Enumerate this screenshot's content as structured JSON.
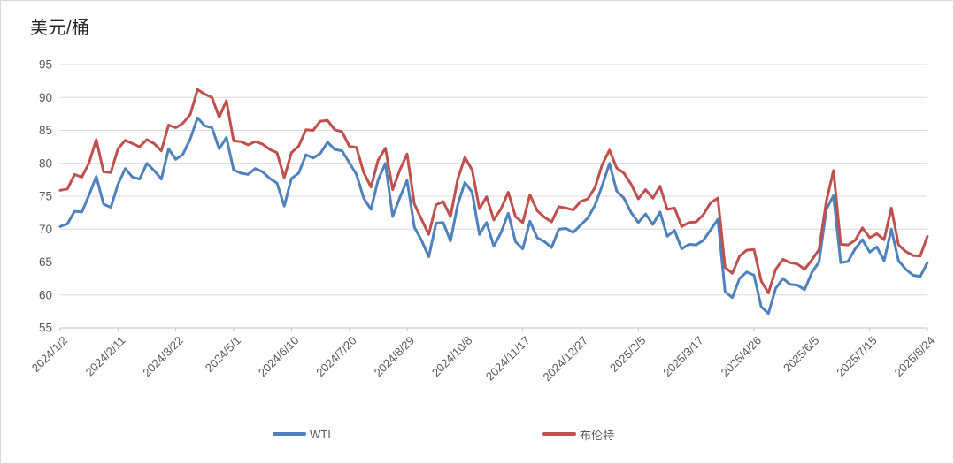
{
  "colors": {
    "background": "#FFFFFF",
    "border": "#D7D7D7",
    "gridline": "#D9D9D9",
    "axis_line": "#BFBFBF",
    "axis_text": "#595959",
    "title_text": "#262626",
    "wti_blue": "#4F81BD",
    "brent_red": "#C0504D"
  },
  "chart_data": {
    "type": "line",
    "title": "美元/桶",
    "xlabel": "",
    "ylabel": "",
    "ylim": [
      55,
      95
    ],
    "y_ticks": [
      55,
      60,
      65,
      70,
      75,
      80,
      85,
      90,
      95
    ],
    "grid": "horizontal",
    "legend_position": "bottom",
    "x_tick_every": 8,
    "x_tick_labels": [
      "2024/1/2",
      "2024/2/11",
      "2024/3/22",
      "2024/5/1",
      "2024/6/10",
      "2024/7/20",
      "2024/8/29",
      "2024/10/8",
      "2024/11/17",
      "2024/12/27",
      "2025/2/5",
      "2025/3/17",
      "2025/4/26",
      "2025/6/5",
      "2025/7/15",
      "2025/8/24"
    ],
    "x": [
      "2024/1/2",
      "2024/1/7",
      "2024/1/12",
      "2024/1/17",
      "2024/1/22",
      "2024/1/27",
      "2024/2/1",
      "2024/2/6",
      "2024/2/11",
      "2024/2/16",
      "2024/2/21",
      "2024/2/26",
      "2024/3/2",
      "2024/3/7",
      "2024/3/12",
      "2024/3/17",
      "2024/3/22",
      "2024/3/27",
      "2024/4/1",
      "2024/4/6",
      "2024/4/11",
      "2024/4/16",
      "2024/4/21",
      "2024/4/26",
      "2024/5/1",
      "2024/5/6",
      "2024/5/11",
      "2024/5/16",
      "2024/5/21",
      "2024/5/26",
      "2024/5/31",
      "2024/6/5",
      "2024/6/10",
      "2024/6/15",
      "2024/6/20",
      "2024/6/25",
      "2024/6/30",
      "2024/7/5",
      "2024/7/10",
      "2024/7/15",
      "2024/7/20",
      "2024/7/25",
      "2024/7/30",
      "2024/8/4",
      "2024/8/9",
      "2024/8/14",
      "2024/8/19",
      "2024/8/24",
      "2024/8/29",
      "2024/9/3",
      "2024/9/8",
      "2024/9/13",
      "2024/9/18",
      "2024/9/23",
      "2024/9/28",
      "2024/10/3",
      "2024/10/8",
      "2024/10/13",
      "2024/10/18",
      "2024/10/23",
      "2024/10/28",
      "2024/11/2",
      "2024/11/7",
      "2024/11/12",
      "2024/11/17",
      "2024/11/22",
      "2024/11/27",
      "2024/12/2",
      "2024/12/7",
      "2024/12/12",
      "2024/12/17",
      "2024/12/22",
      "2024/12/27",
      "2025/1/1",
      "2025/1/6",
      "2025/1/11",
      "2025/1/16",
      "2025/1/21",
      "2025/1/26",
      "2025/1/31",
      "2025/2/5",
      "2025/2/10",
      "2025/2/15",
      "2025/2/20",
      "2025/2/25",
      "2025/3/2",
      "2025/3/7",
      "2025/3/12",
      "2025/3/17",
      "2025/3/22",
      "2025/3/27",
      "2025/4/1",
      "2025/4/6",
      "2025/4/11",
      "2025/4/16",
      "2025/4/21",
      "2025/4/26",
      "2025/5/1",
      "2025/5/6",
      "2025/5/11",
      "2025/5/16",
      "2025/5/21",
      "2025/5/26",
      "2025/5/31",
      "2025/6/5",
      "2025/6/10",
      "2025/6/15",
      "2025/6/20",
      "2025/6/25",
      "2025/6/30",
      "2025/7/5",
      "2025/7/10",
      "2025/7/15",
      "2025/7/20",
      "2025/7/25",
      "2025/7/30",
      "2025/8/4",
      "2025/8/9",
      "2025/8/14",
      "2025/8/19",
      "2025/8/24"
    ],
    "series": [
      {
        "name": "WTI",
        "color": "#4F81BD",
        "values": [
          70.4,
          70.8,
          72.7,
          72.6,
          75.2,
          78.0,
          73.8,
          73.3,
          76.8,
          79.2,
          77.9,
          77.6,
          80.0,
          78.9,
          77.6,
          82.2,
          80.6,
          81.4,
          83.7,
          86.9,
          85.7,
          85.4,
          82.2,
          83.9,
          79.0,
          78.5,
          78.3,
          79.2,
          78.7,
          77.7,
          77.0,
          73.5,
          77.7,
          78.5,
          81.3,
          80.8,
          81.5,
          83.2,
          82.1,
          81.9,
          80.1,
          78.3,
          74.7,
          73.0,
          77.5,
          80.0,
          71.9,
          74.8,
          77.4,
          70.3,
          68.3,
          65.8,
          70.9,
          71.0,
          68.2,
          73.7,
          77.1,
          75.6,
          69.2,
          71.0,
          67.4,
          69.5,
          72.4,
          68.1,
          67.0,
          71.2,
          68.7,
          68.1,
          67.2,
          70.0,
          70.1,
          69.5,
          70.6,
          71.7,
          73.6,
          76.6,
          80.0,
          75.8,
          74.7,
          72.5,
          71.0,
          72.3,
          70.7,
          72.6,
          68.9,
          69.8,
          67.0,
          67.7,
          67.6,
          68.3,
          69.9,
          71.5,
          60.5,
          59.6,
          62.5,
          63.5,
          63.0,
          58.2,
          57.2,
          61.0,
          62.5,
          61.6,
          61.5,
          60.8,
          63.4,
          65.0,
          73.0,
          75.1,
          64.9,
          65.1,
          67.0,
          68.4,
          66.5,
          67.3,
          65.2,
          70.0,
          65.2,
          63.9,
          63.0,
          62.8,
          64.9
        ]
      },
      {
        "name": "布伦特",
        "color": "#C0504D",
        "values": [
          75.9,
          76.1,
          78.3,
          77.9,
          80.1,
          83.6,
          78.7,
          78.6,
          82.2,
          83.5,
          83.0,
          82.5,
          83.6,
          83.0,
          81.9,
          85.8,
          85.4,
          86.1,
          87.4,
          91.2,
          90.5,
          90.0,
          87.0,
          89.5,
          83.4,
          83.3,
          82.8,
          83.3,
          82.9,
          82.1,
          81.6,
          77.8,
          81.6,
          82.6,
          85.1,
          85.0,
          86.4,
          86.5,
          85.1,
          84.8,
          82.6,
          82.4,
          78.6,
          76.4,
          80.5,
          82.3,
          76.0,
          79.0,
          81.4,
          73.8,
          71.5,
          69.2,
          73.7,
          74.2,
          71.9,
          77.6,
          80.9,
          79.0,
          73.1,
          74.9,
          71.4,
          73.1,
          75.6,
          71.9,
          71.0,
          75.2,
          72.8,
          71.8,
          71.1,
          73.4,
          73.2,
          72.9,
          74.2,
          74.6,
          76.3,
          79.8,
          82.0,
          79.3,
          78.5,
          76.8,
          74.6,
          76.0,
          74.7,
          76.5,
          73.0,
          73.2,
          70.4,
          71.0,
          71.1,
          72.2,
          74.0,
          74.7,
          64.2,
          63.3,
          65.9,
          66.8,
          66.9,
          62.1,
          60.3,
          63.9,
          65.4,
          64.9,
          64.7,
          63.9,
          65.3,
          66.9,
          74.2,
          78.9,
          67.7,
          67.6,
          68.3,
          70.2,
          68.7,
          69.3,
          68.4,
          73.2,
          67.6,
          66.6,
          66.0,
          65.9,
          68.9
        ]
      }
    ]
  },
  "legend": {
    "items": [
      {
        "label": "WTI"
      },
      {
        "label": "布伦特"
      }
    ]
  }
}
